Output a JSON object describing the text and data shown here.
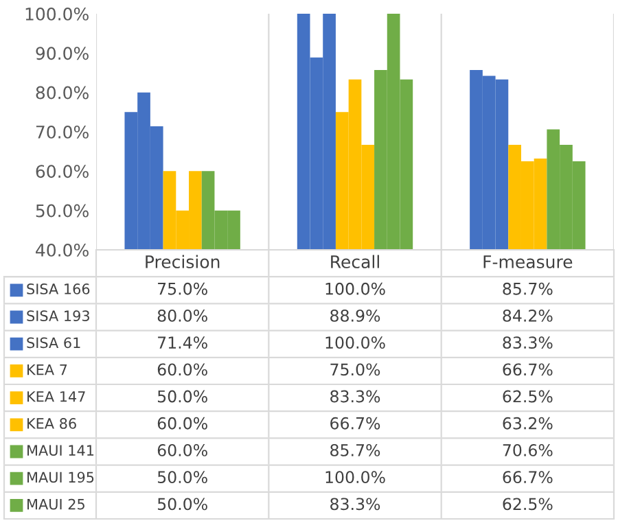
{
  "chart_data": {
    "type": "bar",
    "categories": [
      "Precision",
      "Recall",
      "F-measure"
    ],
    "ylim": [
      40,
      100
    ],
    "yticks": [
      {
        "value": 40,
        "label": "40.0%"
      },
      {
        "value": 50,
        "label": "50.0%"
      },
      {
        "value": 60,
        "label": "60.0%"
      },
      {
        "value": 70,
        "label": "70.0%"
      },
      {
        "value": 80,
        "label": "80.0%"
      },
      {
        "value": 90,
        "label": "90.0%"
      },
      {
        "value": 100,
        "label": "100.0%"
      }
    ],
    "grid": false,
    "legend": "bottom",
    "series": [
      {
        "name": "SISA 166",
        "color": "#4472c4",
        "values": [
          75.0,
          100.0,
          85.7
        ],
        "value_labels": [
          "75.0%",
          "100.0%",
          "85.7%"
        ]
      },
      {
        "name": "SISA 193",
        "color": "#4472c4",
        "values": [
          80.0,
          88.9,
          84.2
        ],
        "value_labels": [
          "80.0%",
          "88.9%",
          "84.2%"
        ]
      },
      {
        "name": "SISA 61",
        "color": "#4472c4",
        "values": [
          71.4,
          100.0,
          83.3
        ],
        "value_labels": [
          "71.4%",
          "100.0%",
          "83.3%"
        ]
      },
      {
        "name": "KEA 7",
        "color": "#ffc000",
        "values": [
          60.0,
          75.0,
          66.7
        ],
        "value_labels": [
          "60.0%",
          "75.0%",
          "66.7%"
        ]
      },
      {
        "name": "KEA 147",
        "color": "#ffc000",
        "values": [
          50.0,
          83.3,
          62.5
        ],
        "value_labels": [
          "50.0%",
          "83.3%",
          "62.5%"
        ]
      },
      {
        "name": "KEA 86",
        "color": "#ffc000",
        "values": [
          60.0,
          66.7,
          63.2
        ],
        "value_labels": [
          "60.0%",
          "66.7%",
          "63.2%"
        ]
      },
      {
        "name": "MAUI 141",
        "color": "#70ad47",
        "values": [
          60.0,
          85.7,
          70.6
        ],
        "value_labels": [
          "60.0%",
          "85.7%",
          "70.6%"
        ]
      },
      {
        "name": "MAUI 195",
        "color": "#70ad47",
        "values": [
          50.0,
          100.0,
          66.7
        ],
        "value_labels": [
          "50.0%",
          "100.0%",
          "66.7%"
        ]
      },
      {
        "name": "MAUI 25",
        "color": "#70ad47",
        "values": [
          50.0,
          83.3,
          62.5
        ],
        "value_labels": [
          "50.0%",
          "83.3%",
          "62.5%"
        ]
      }
    ]
  }
}
